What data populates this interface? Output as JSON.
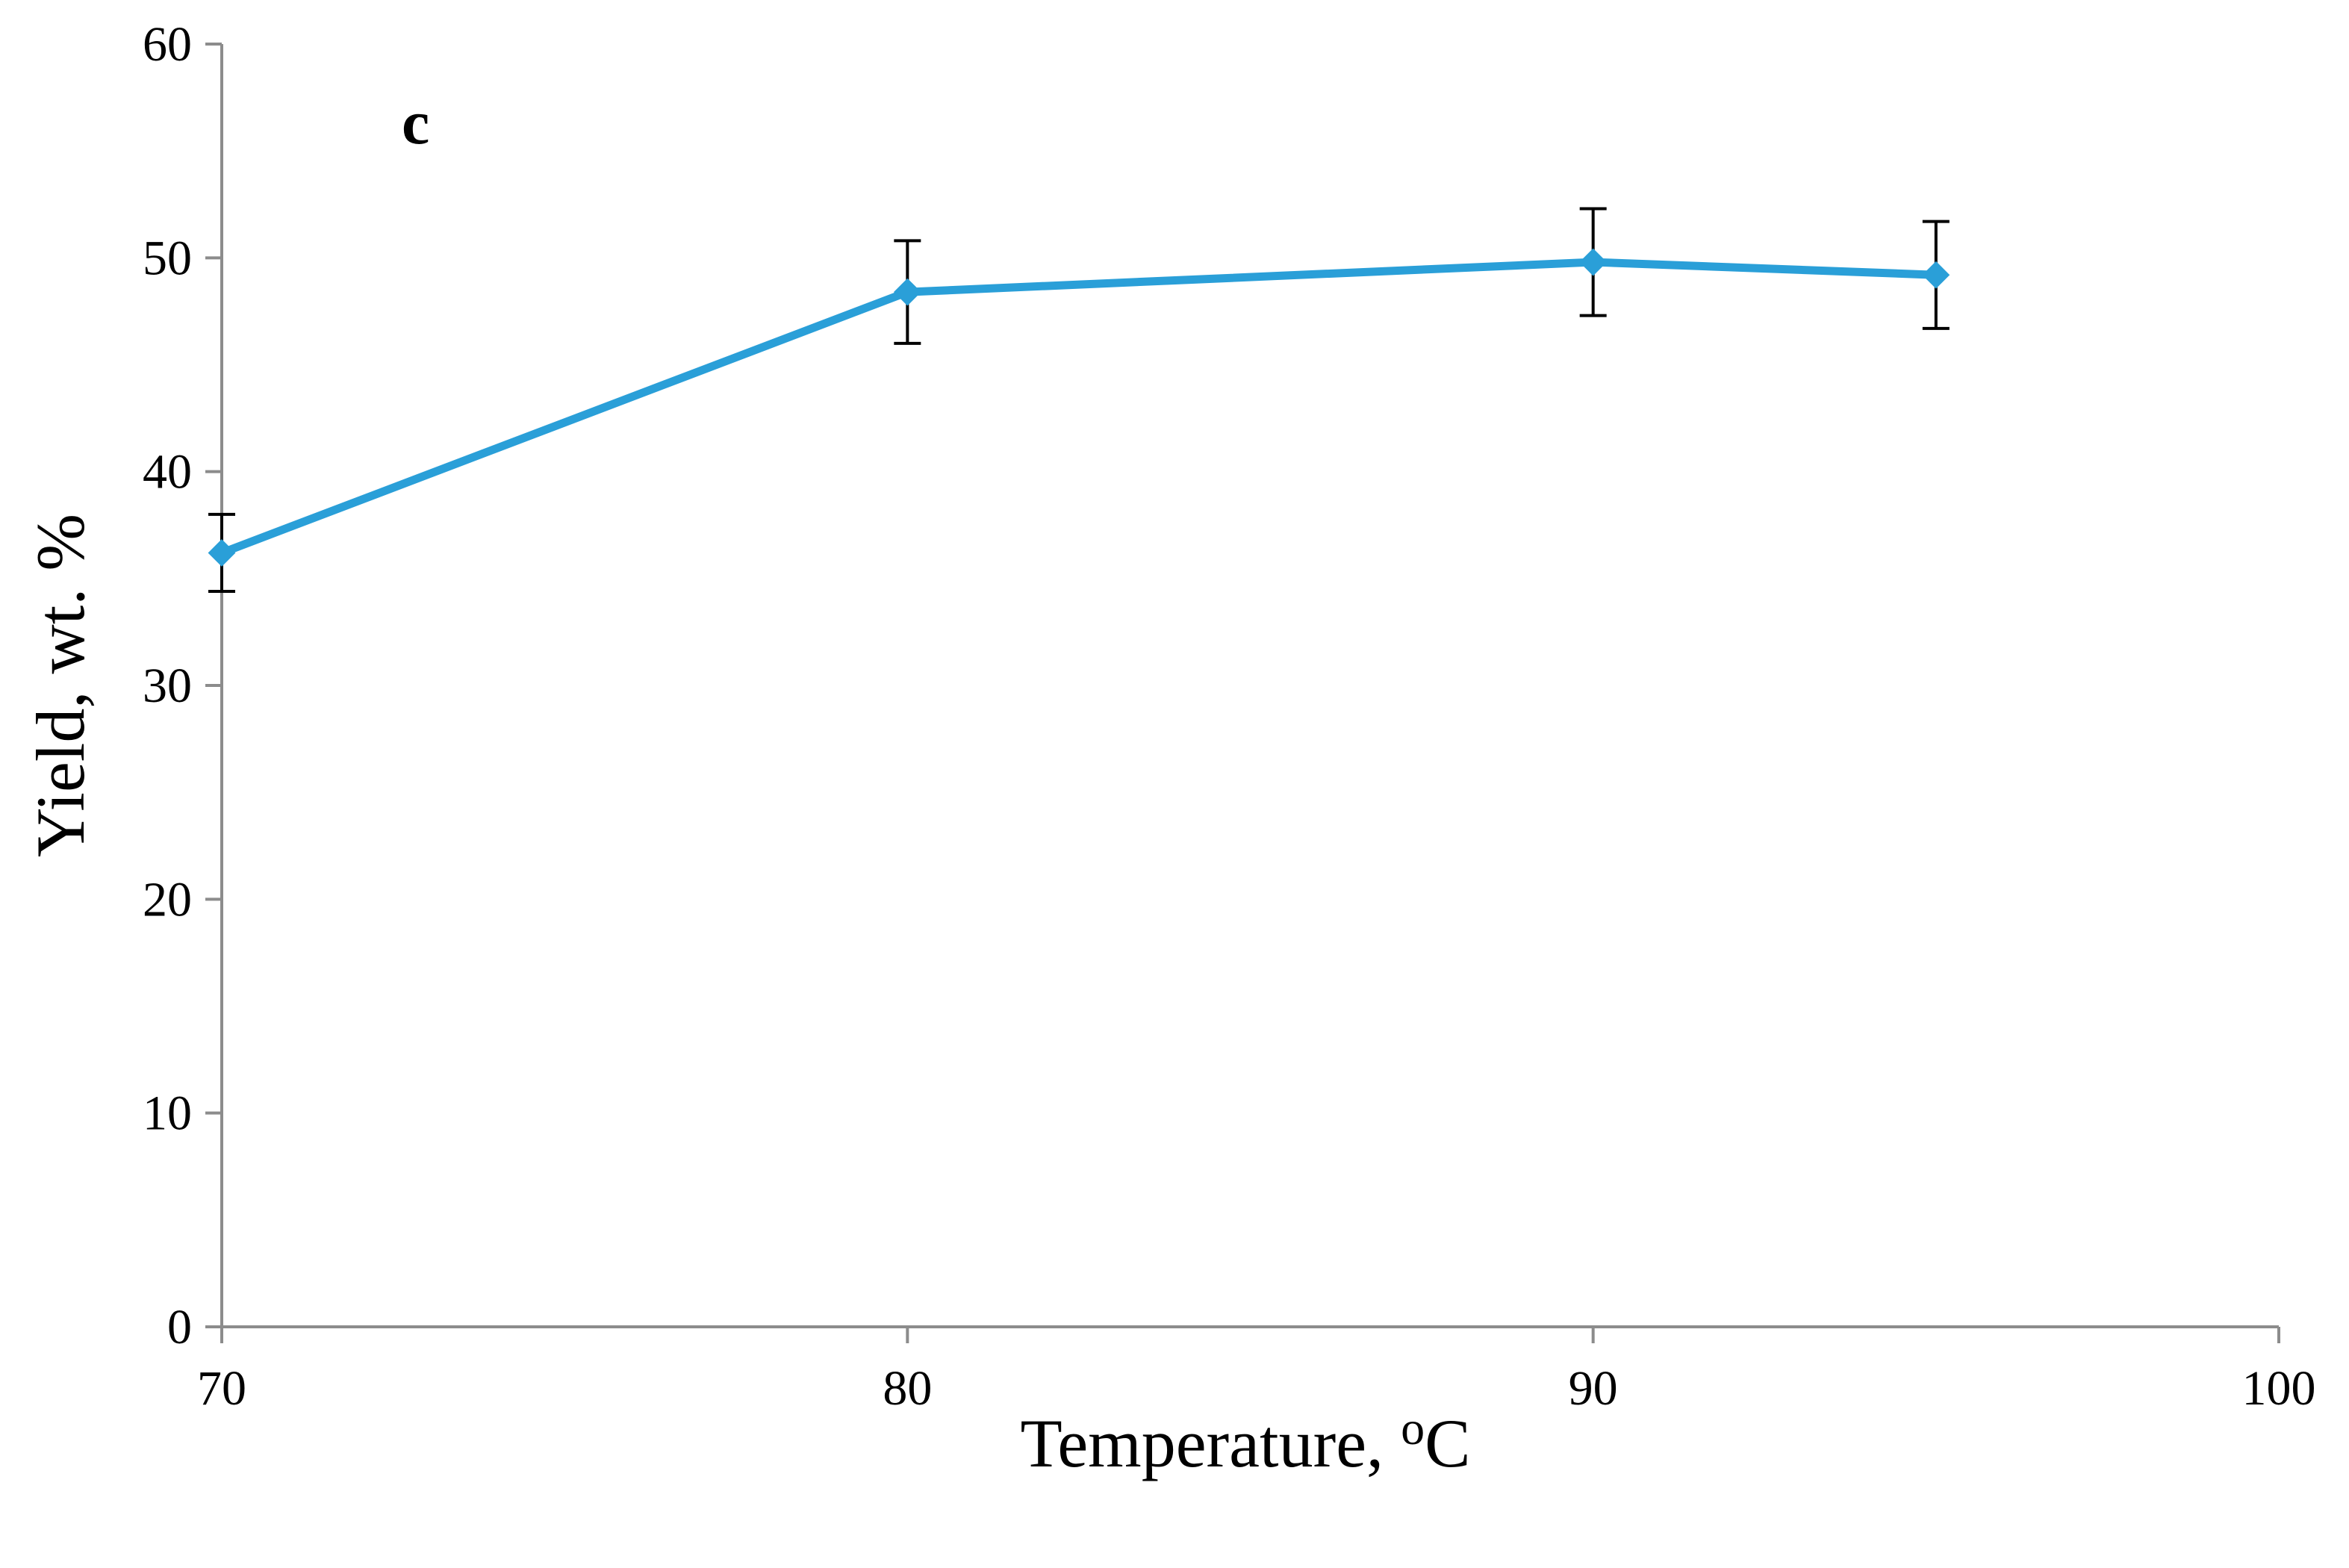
{
  "chart_data": {
    "type": "line",
    "panel_label": "c",
    "title": "",
    "xlabel": "Temperature, ",
    "xlabel_superscript": "o",
    "xlabel_unit": "C",
    "ylabel": "Yield, wt. %",
    "xlim": [
      70,
      100
    ],
    "ylim": [
      0,
      60
    ],
    "x_ticks": [
      70,
      80,
      90,
      100
    ],
    "y_ticks": [
      0,
      10,
      20,
      30,
      40,
      50,
      60
    ],
    "grid": false,
    "legend": "none",
    "series": [
      {
        "name": "Yield",
        "color": "#2a9fd8",
        "marker": "diamond",
        "x": [
          70,
          80,
          90,
          95
        ],
        "y": [
          36.2,
          48.4,
          49.8,
          49.2
        ],
        "error": [
          1.8,
          2.4,
          2.5,
          2.5
        ]
      }
    ]
  }
}
